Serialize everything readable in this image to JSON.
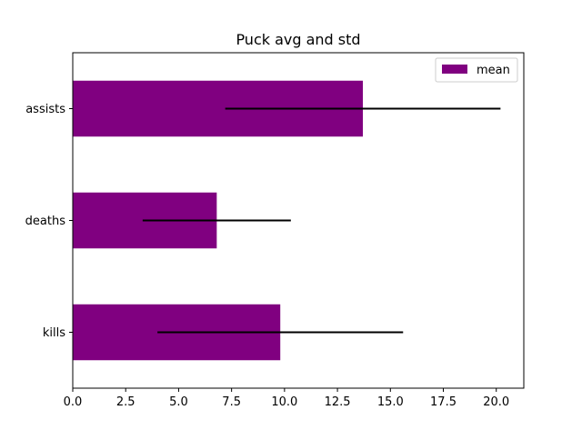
{
  "chart_data": {
    "type": "bar",
    "orientation": "horizontal",
    "title": "Puck avg and std",
    "xlabel": "",
    "ylabel": "",
    "categories": [
      "kills",
      "deaths",
      "assists"
    ],
    "series": [
      {
        "name": "mean",
        "values": [
          9.8,
          6.8,
          13.7
        ],
        "error": [
          5.8,
          3.5,
          6.5
        ]
      }
    ],
    "xlim": [
      0,
      21.3
    ],
    "xticks": [
      "0.0",
      "2.5",
      "5.0",
      "7.5",
      "10.0",
      "12.5",
      "15.0",
      "17.5",
      "20.0"
    ],
    "legend_position": "top-right",
    "grid": false,
    "colors": {
      "bar": "#800080",
      "error_bar": "#000000"
    }
  }
}
